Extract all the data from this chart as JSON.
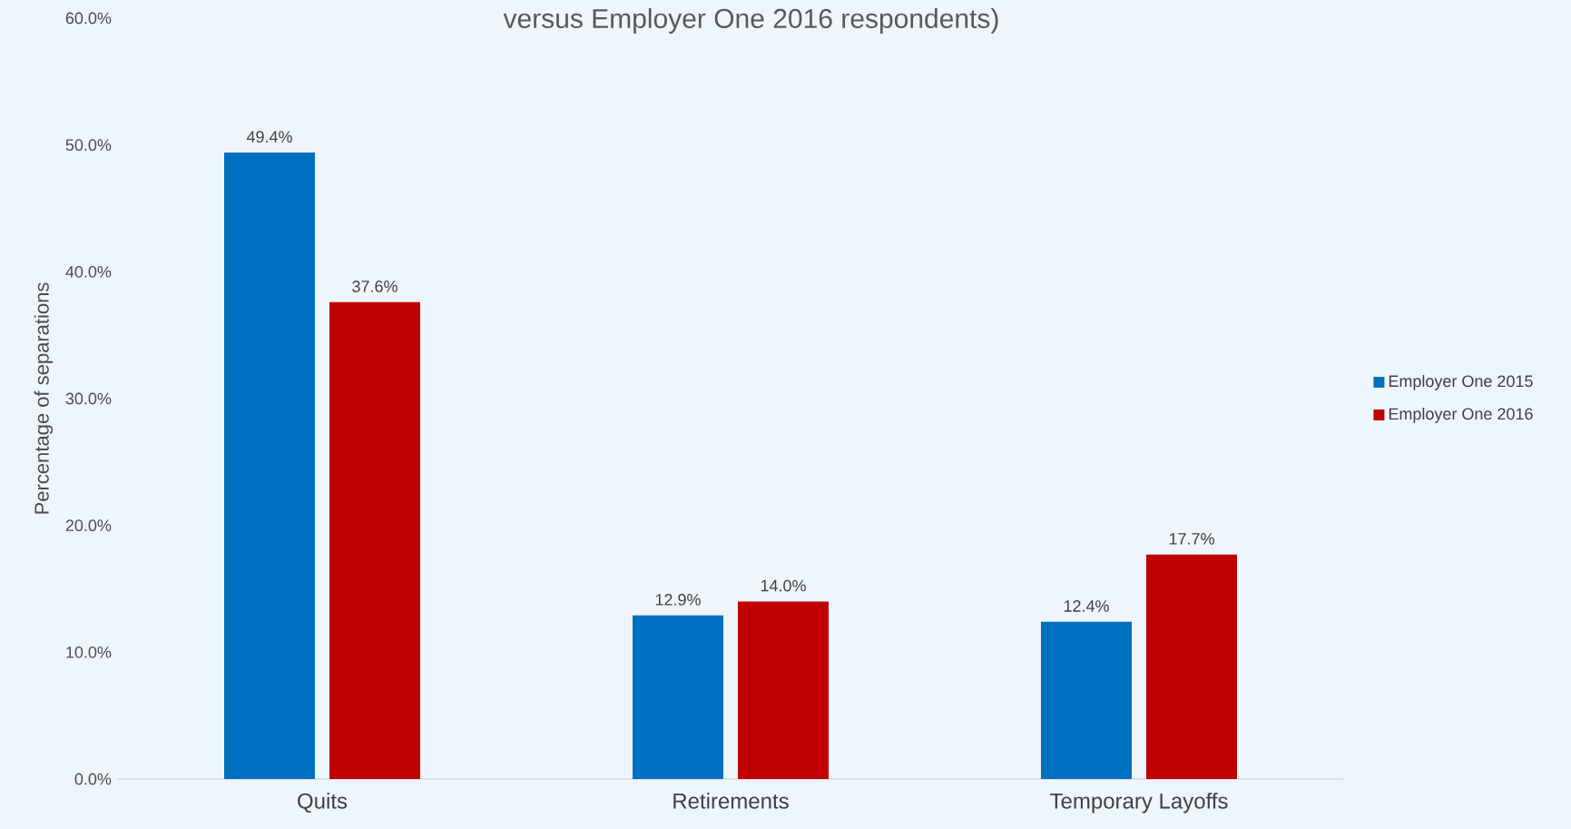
{
  "chart_data": {
    "type": "bar",
    "title": "versus Employer One 2016 respondents)",
    "ylabel": "Percentage of separations",
    "categories": [
      "Quits",
      "Retirements",
      "Temporary Layoffs"
    ],
    "series": [
      {
        "name": "Employer One 2015",
        "color": "#0070c0",
        "values": [
          49.4,
          12.9,
          12.4
        ],
        "value_labels": [
          "49.4%",
          "12.9%",
          "12.4%"
        ]
      },
      {
        "name": "Employer One 2016",
        "color": "#c00000",
        "values": [
          37.6,
          14.0,
          17.7
        ],
        "value_labels": [
          "37.6%",
          "14.0%",
          "17.7%"
        ]
      }
    ],
    "ylim": [
      0,
      60
    ],
    "yticks": [
      {
        "value": 0,
        "label": "0.0%"
      },
      {
        "value": 10,
        "label": "10.0%"
      },
      {
        "value": 20,
        "label": "20.0%"
      },
      {
        "value": 30,
        "label": "30.0%"
      },
      {
        "value": 40,
        "label": "40.0%"
      },
      {
        "value": 50,
        "label": "50.0%"
      },
      {
        "value": 60,
        "label": "60.0%"
      }
    ],
    "legend": "right"
  }
}
